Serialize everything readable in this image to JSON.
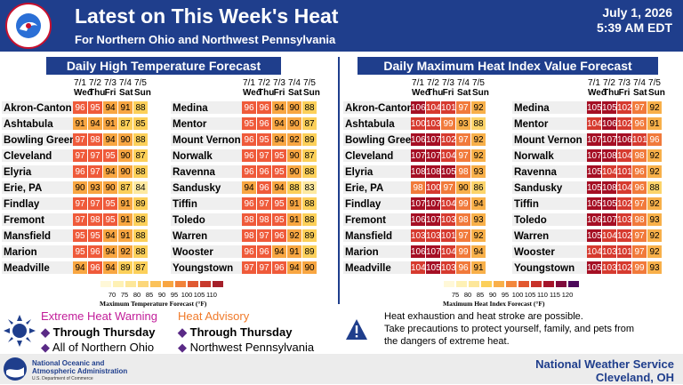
{
  "header": {
    "title": "Latest on This Week's Heat",
    "subtitle": "For Northern Ohio and Northwest Pennsylvania",
    "date": "July 1, 2026",
    "time": "5:39 AM EDT",
    "logo_text": "NATIONAL WEATHER SERVICE"
  },
  "days": [
    {
      "date": "7/1",
      "dow": "Wed"
    },
    {
      "date": "7/2",
      "dow": "Thu"
    },
    {
      "date": "7/3",
      "dow": "Fri"
    },
    {
      "date": "7/4",
      "dow": "Sat"
    },
    {
      "date": "7/5",
      "dow": "Sun"
    }
  ],
  "high_temp": {
    "title": "Daily High Temperature Forecast",
    "left": [
      {
        "city": "Akron-Canton",
        "values": [
          96,
          95,
          94,
          91,
          88
        ]
      },
      {
        "city": "Ashtabula",
        "values": [
          91,
          94,
          91,
          87,
          85
        ]
      },
      {
        "city": "Bowling Green",
        "values": [
          97,
          98,
          94,
          90,
          88
        ]
      },
      {
        "city": "Cleveland",
        "values": [
          97,
          97,
          95,
          90,
          87
        ]
      },
      {
        "city": "Elyria",
        "values": [
          96,
          97,
          94,
          90,
          88
        ]
      },
      {
        "city": "Erie, PA",
        "values": [
          90,
          93,
          90,
          87,
          84
        ]
      },
      {
        "city": "Findlay",
        "values": [
          97,
          97,
          95,
          91,
          89
        ]
      },
      {
        "city": "Fremont",
        "values": [
          97,
          98,
          95,
          91,
          88
        ]
      },
      {
        "city": "Mansfield",
        "values": [
          95,
          95,
          94,
          91,
          88
        ]
      },
      {
        "city": "Marion",
        "values": [
          95,
          96,
          94,
          92,
          88
        ]
      },
      {
        "city": "Meadville",
        "values": [
          94,
          96,
          94,
          89,
          87
        ]
      }
    ],
    "right": [
      {
        "city": "Medina",
        "values": [
          96,
          96,
          94,
          90,
          88
        ]
      },
      {
        "city": "Mentor",
        "values": [
          95,
          96,
          94,
          90,
          87
        ]
      },
      {
        "city": "Mount Vernon",
        "values": [
          96,
          95,
          94,
          92,
          89
        ]
      },
      {
        "city": "Norwalk",
        "values": [
          96,
          97,
          95,
          90,
          87
        ]
      },
      {
        "city": "Ravenna",
        "values": [
          96,
          96,
          95,
          90,
          88
        ]
      },
      {
        "city": "Sandusky",
        "values": [
          94,
          96,
          94,
          88,
          83
        ]
      },
      {
        "city": "Tiffin",
        "values": [
          96,
          97,
          95,
          91,
          88
        ]
      },
      {
        "city": "Toledo",
        "values": [
          98,
          98,
          95,
          91,
          88
        ]
      },
      {
        "city": "Warren",
        "values": [
          98,
          97,
          96,
          92,
          89
        ]
      },
      {
        "city": "Wooster",
        "values": [
          96,
          96,
          94,
          91,
          89
        ]
      },
      {
        "city": "Youngstown",
        "values": [
          97,
          97,
          96,
          94,
          90
        ]
      }
    ],
    "legend": {
      "ticks": [
        "70",
        "75",
        "80",
        "85",
        "90",
        "95",
        "100",
        "105",
        "110"
      ],
      "caption": "Maximum Temperature Forecast (°F)"
    }
  },
  "heat_index": {
    "title": "Daily Maximum Heat Index Value Forecast",
    "left": [
      {
        "city": "Akron-Canton",
        "values": [
          106,
          104,
          101,
          97,
          92
        ]
      },
      {
        "city": "Ashtabula",
        "values": [
          100,
          103,
          99,
          93,
          88
        ]
      },
      {
        "city": "Bowling Green",
        "values": [
          106,
          107,
          102,
          97,
          92
        ]
      },
      {
        "city": "Cleveland",
        "values": [
          107,
          107,
          104,
          97,
          92
        ]
      },
      {
        "city": "Elyria",
        "values": [
          108,
          108,
          105,
          98,
          93
        ]
      },
      {
        "city": "Erie, PA",
        "values": [
          98,
          100,
          97,
          90,
          86
        ]
      },
      {
        "city": "Findlay",
        "values": [
          107,
          107,
          104,
          99,
          94
        ]
      },
      {
        "city": "Fremont",
        "values": [
          106,
          107,
          103,
          98,
          93
        ]
      },
      {
        "city": "Mansfield",
        "values": [
          103,
          103,
          101,
          97,
          92
        ]
      },
      {
        "city": "Marion",
        "values": [
          106,
          107,
          104,
          99,
          94
        ]
      },
      {
        "city": "Meadville",
        "values": [
          104,
          105,
          103,
          96,
          91
        ]
      }
    ],
    "right": [
      {
        "city": "Medina",
        "values": [
          105,
          105,
          102,
          97,
          92
        ]
      },
      {
        "city": "Mentor",
        "values": [
          104,
          106,
          102,
          96,
          91
        ]
      },
      {
        "city": "Mount Vernon",
        "values": [
          107,
          107,
          106,
          101,
          96
        ]
      },
      {
        "city": "Norwalk",
        "values": [
          107,
          108,
          104,
          98,
          92
        ]
      },
      {
        "city": "Ravenna",
        "values": [
          105,
          104,
          101,
          96,
          92
        ]
      },
      {
        "city": "Sandusky",
        "values": [
          105,
          108,
          104,
          96,
          88
        ]
      },
      {
        "city": "Tiffin",
        "values": [
          105,
          105,
          102,
          97,
          92
        ]
      },
      {
        "city": "Toledo",
        "values": [
          106,
          107,
          103,
          98,
          93
        ]
      },
      {
        "city": "Warren",
        "values": [
          105,
          104,
          102,
          97,
          92
        ]
      },
      {
        "city": "Wooster",
        "values": [
          104,
          103,
          101,
          97,
          92
        ]
      },
      {
        "city": "Youngstown",
        "values": [
          105,
          103,
          102,
          99,
          93
        ]
      }
    ],
    "legend": {
      "ticks": [
        "75",
        "80",
        "85",
        "90",
        "95",
        "100",
        "105",
        "110",
        "115",
        "120"
      ],
      "caption": "Maximum Heat Index Forecast (°F)"
    }
  },
  "alerts": {
    "warning_title": "Extreme Heat Warning",
    "warning_until": "Through Thursday",
    "warning_area": "All of Northern Ohio",
    "advisory_title": "Heat Advisory",
    "advisory_until": "Through Thursday",
    "advisory_area": "Northwest Pennsylvania",
    "bullet": "◆"
  },
  "info": {
    "line1": "Heat exhaustion and heat stroke are possible.",
    "line2": "Take precautions to protect yourself, family, and pets from",
    "line3": "the dangers of extreme heat."
  },
  "footer": {
    "noaa_line1": "National Oceanic and",
    "noaa_line2": "Atmospheric Administration",
    "noaa_line3": "U.S. Department of Commerce",
    "nws_line1": "National Weather Service",
    "nws_line2": "Cleveland, OH"
  },
  "colors": {
    "navy": "#1f3e8c",
    "warning": "#c21e9a",
    "advisory": "#f07a2a"
  }
}
